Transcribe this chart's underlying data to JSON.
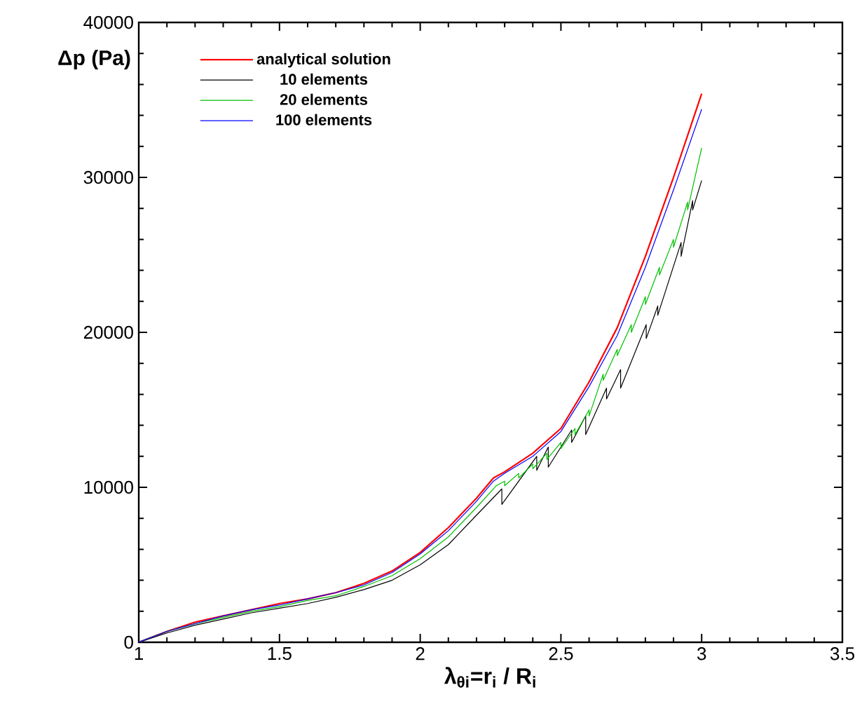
{
  "chart_data": {
    "type": "line",
    "xlabel": "λ$_{θi}$=r$_{i}$ / R$_{i}$",
    "ylabel": "Δp (Pa)",
    "xlim": [
      1,
      3.5
    ],
    "ylim": [
      0,
      40000
    ],
    "xticks": [
      1,
      1.5,
      2,
      2.5,
      3,
      3.5
    ],
    "yticks": [
      0,
      10000,
      20000,
      30000,
      40000
    ],
    "grid": false,
    "legend": "top left",
    "marker": "none",
    "line_style": "solid",
    "series": [
      {
        "name": "analytical solution",
        "color": "#ff0000",
        "x": [
          1,
          1.1,
          1.2,
          1.3,
          1.4,
          1.5,
          1.6,
          1.7,
          1.8,
          1.9,
          2.0,
          2.1,
          2.2,
          2.26,
          2.3,
          2.4,
          2.5,
          2.6,
          2.7,
          2.8,
          2.9,
          3.0
        ],
        "values": [
          0,
          700,
          1300,
          1700,
          2100,
          2500,
          2800,
          3200,
          3800,
          4600,
          5800,
          7400,
          9300,
          10600,
          11000,
          12200,
          13800,
          16800,
          20300,
          24900,
          30000,
          35400
        ]
      },
      {
        "name": "10 elements",
        "color": "#000000",
        "x": [
          1,
          1.1,
          1.2,
          1.3,
          1.4,
          1.5,
          1.6,
          1.7,
          1.8,
          1.9,
          2.0,
          2.1,
          2.2,
          2.29,
          2.29,
          2.414,
          2.414,
          2.455,
          2.455,
          2.538,
          2.538,
          2.588,
          2.588,
          2.662,
          2.662,
          2.712,
          2.712,
          2.803,
          2.803,
          2.844,
          2.844,
          2.927,
          2.927,
          2.968,
          2.968,
          3.0
        ],
        "values": [
          0,
          600,
          1100,
          1500,
          1900,
          2200,
          2500,
          2900,
          3400,
          4000,
          5000,
          6300,
          8200,
          9900,
          8900,
          12000,
          11100,
          12600,
          11300,
          13700,
          12900,
          14600,
          13400,
          16400,
          15700,
          17600,
          16400,
          20500,
          19600,
          21700,
          21100,
          25800,
          24900,
          28500,
          27900,
          29800
        ]
      },
      {
        "name": "20 elements",
        "color": "#00c000",
        "x": [
          1,
          1.1,
          1.2,
          1.3,
          1.4,
          1.5,
          1.6,
          1.7,
          1.8,
          1.9,
          2.0,
          2.1,
          2.2,
          2.27,
          2.3,
          2.3,
          2.35,
          2.35,
          2.4,
          2.4,
          2.45,
          2.45,
          2.5,
          2.5,
          2.55,
          2.55,
          2.6,
          2.6,
          2.65,
          2.65,
          2.7,
          2.7,
          2.75,
          2.75,
          2.8,
          2.8,
          2.85,
          2.85,
          2.9,
          2.9,
          2.95,
          2.95,
          3.0
        ],
        "values": [
          0,
          700,
          1200,
          1600,
          2000,
          2300,
          2700,
          3000,
          3600,
          4300,
          5400,
          6800,
          8700,
          10100,
          10400,
          10100,
          10900,
          10600,
          11500,
          11200,
          12200,
          11800,
          12900,
          12500,
          13800,
          13400,
          15000,
          14600,
          17300,
          16900,
          18900,
          18500,
          20500,
          20000,
          22300,
          21800,
          24200,
          23700,
          26000,
          25500,
          28400,
          27900,
          31900
        ]
      },
      {
        "name": "100 elements",
        "color": "#0000ff",
        "x": [
          1,
          1.1,
          1.2,
          1.3,
          1.4,
          1.5,
          1.6,
          1.7,
          1.8,
          1.9,
          2.0,
          2.1,
          2.2,
          2.26,
          2.3,
          2.4,
          2.5,
          2.6,
          2.7,
          2.8,
          2.9,
          3.0
        ],
        "values": [
          0,
          700,
          1200,
          1700,
          2100,
          2400,
          2800,
          3200,
          3700,
          4500,
          5700,
          7200,
          9100,
          10400,
          10900,
          12000,
          13600,
          16500,
          19800,
          24200,
          29200,
          34400
        ]
      }
    ]
  }
}
